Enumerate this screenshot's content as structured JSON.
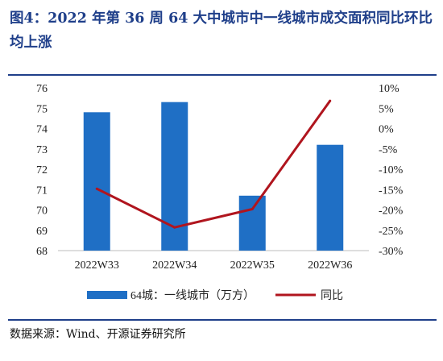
{
  "title": "图4：2022 年第 36 周 64 大中城市中一线城市成交面积同比环比均上涨",
  "source": "数据来源：Wind、开源证券研究所",
  "colors": {
    "bar": "#1f6fc5",
    "line": "#b0151e",
    "title": "#1f3f8a",
    "axis": "#bdbdbd"
  },
  "chart_data": {
    "type": "bar",
    "categories": [
      "2022W33",
      "2022W34",
      "2022W35",
      "2022W36"
    ],
    "series": [
      {
        "name": "64城：一线城市（万方）",
        "type": "bar",
        "axis": "left",
        "values": [
          74.8,
          75.3,
          70.7,
          73.2
        ]
      },
      {
        "name": "同比",
        "type": "line",
        "axis": "right",
        "values": [
          -14.8,
          -24.3,
          -19.8,
          6.8
        ]
      }
    ],
    "y_left": {
      "ylim": [
        68,
        76
      ],
      "ticks": [
        "68",
        "69",
        "70",
        "71",
        "72",
        "73",
        "74",
        "75",
        "76"
      ]
    },
    "y_right": {
      "ylim": [
        -30,
        10
      ],
      "ticks": [
        "-30%",
        "-25%",
        "-20%",
        "-15%",
        "-10%",
        "-5%",
        "0%",
        "5%",
        "10%"
      ]
    },
    "legend": {
      "position": "bottom"
    },
    "grid": false
  }
}
